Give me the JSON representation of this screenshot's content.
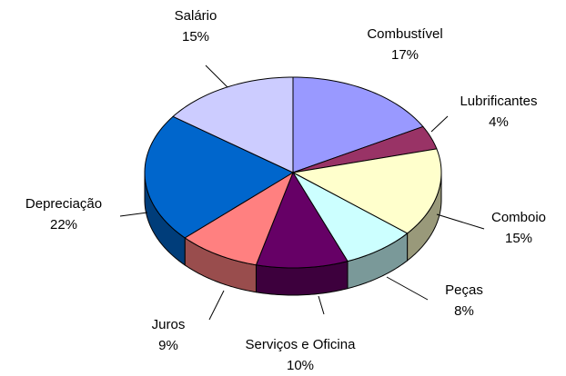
{
  "chart_data": {
    "type": "pie3d",
    "categories": [
      "Combustível",
      "Lubrificantes",
      "Comboio",
      "Peças",
      "Serviços e Oficina",
      "Juros",
      "Depreciação",
      "Salário"
    ],
    "values": [
      17,
      4,
      15,
      8,
      10,
      9,
      22,
      15
    ],
    "value_labels": [
      "17%",
      "4%",
      "15%",
      "8%",
      "10%",
      "9%",
      "22%",
      "15%"
    ],
    "colors": [
      "#9999ff",
      "#993366",
      "#ffffcc",
      "#ccffff",
      "#660066",
      "#ff8080",
      "#0066cc",
      "#ccccff"
    ]
  }
}
